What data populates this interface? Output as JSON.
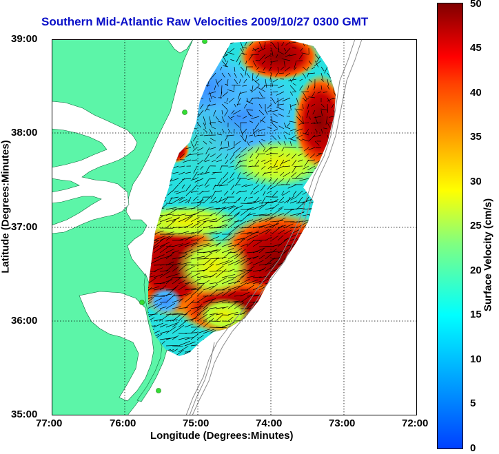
{
  "title": "Southern Mid-Atlantic Raw Velocities 2009/10/27 0300 GMT",
  "map": {
    "x_axis_label": "Longitude (Degrees:Minutes)",
    "y_axis_label": "Latitude (Degrees:Minutes)",
    "x_ticks": [
      "77:00",
      "76:00",
      "75:00",
      "74:00",
      "73:00",
      "72:00"
    ],
    "y_ticks": [
      "39:00",
      "38:00",
      "37:00",
      "36:00",
      "35:00"
    ],
    "lon_range": [
      -77,
      -72
    ],
    "lat_range": [
      35,
      39
    ],
    "land_color": "#5cf5a8",
    "water_color": "#ffffff",
    "grid": "dotted",
    "vector_color": "#000000",
    "station_marker_color": "#33dd33"
  },
  "colorbar": {
    "label": "Surface Velocity (cm/s)",
    "ticks": [
      "0",
      "5",
      "10",
      "15",
      "20",
      "25",
      "30",
      "35",
      "40",
      "45",
      "50"
    ],
    "range": [
      0,
      50
    ],
    "colormap": "jet"
  }
}
